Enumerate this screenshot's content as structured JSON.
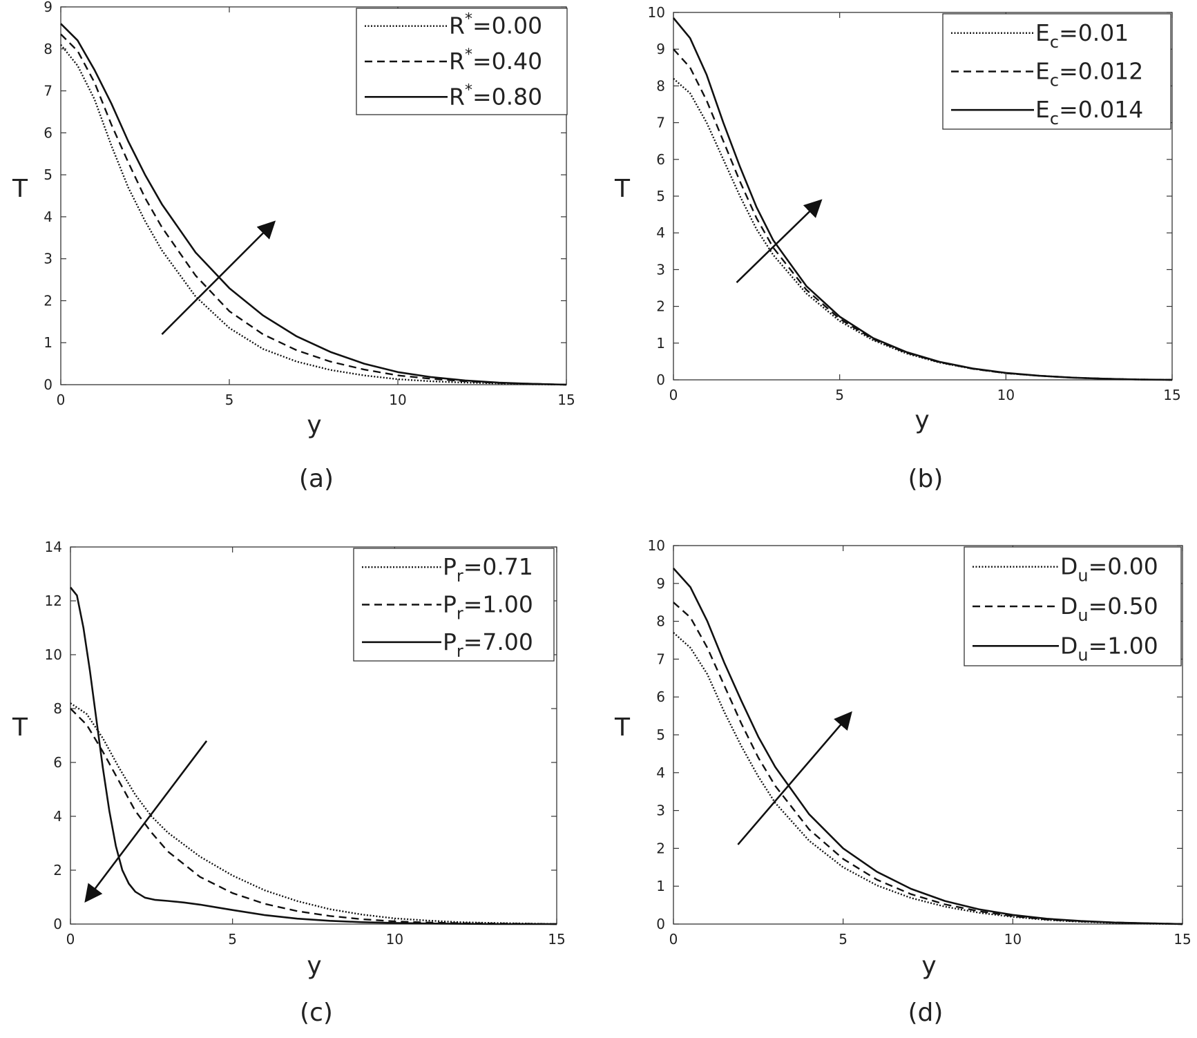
{
  "chart_data": [
    {
      "type": "line",
      "caption": "(a)",
      "xlabel": "y",
      "ylabel": "T",
      "xlim": [
        0,
        15
      ],
      "ylim": [
        0,
        9
      ],
      "xticks": [
        0,
        5,
        10,
        15
      ],
      "yticks": [
        0,
        1,
        2,
        3,
        4,
        5,
        6,
        7,
        8,
        9
      ],
      "legend": "top-right",
      "grid": false,
      "series": [
        {
          "name": "R*=0.00",
          "symbol": "R",
          "sup": "*",
          "sub": "",
          "value": "=0.00",
          "style": "dotted",
          "x": [
            0,
            0.5,
            1,
            1.5,
            2,
            2.5,
            3,
            4,
            5,
            6,
            7,
            8,
            9,
            10,
            11,
            12,
            13,
            14,
            15
          ],
          "y": [
            8.1,
            7.6,
            6.8,
            5.7,
            4.7,
            3.9,
            3.2,
            2.1,
            1.35,
            0.85,
            0.55,
            0.35,
            0.22,
            0.13,
            0.08,
            0.05,
            0.03,
            0.01,
            0
          ]
        },
        {
          "name": "R*=0.40",
          "symbol": "R",
          "sup": "*",
          "sub": "",
          "value": "=0.40",
          "style": "dashed",
          "x": [
            0,
            0.5,
            1,
            1.5,
            2,
            2.5,
            3,
            4,
            5,
            6,
            7,
            8,
            9,
            10,
            11,
            12,
            13,
            14,
            15
          ],
          "y": [
            8.35,
            7.95,
            7.2,
            6.2,
            5.3,
            4.45,
            3.75,
            2.6,
            1.75,
            1.2,
            0.82,
            0.55,
            0.36,
            0.22,
            0.14,
            0.08,
            0.04,
            0.02,
            0
          ]
        },
        {
          "name": "R*=0.80",
          "symbol": "R",
          "sup": "*",
          "sub": "",
          "value": "=0.80",
          "style": "solid",
          "x": [
            0,
            0.5,
            1,
            1.5,
            2,
            2.5,
            3,
            4,
            5,
            6,
            7,
            8,
            9,
            10,
            11,
            12,
            13,
            14,
            15
          ],
          "y": [
            8.6,
            8.2,
            7.5,
            6.7,
            5.8,
            5.0,
            4.3,
            3.15,
            2.3,
            1.65,
            1.15,
            0.78,
            0.5,
            0.3,
            0.18,
            0.1,
            0.05,
            0.02,
            0
          ]
        }
      ],
      "arrow": {
        "from": [
          3.0,
          1.2
        ],
        "to": [
          6.3,
          3.85
        ]
      }
    },
    {
      "type": "line",
      "caption": "(b)",
      "xlabel": "y",
      "ylabel": "T",
      "xlim": [
        0,
        15
      ],
      "ylim": [
        0,
        10
      ],
      "xticks": [
        0,
        5,
        10,
        15
      ],
      "yticks": [
        0,
        1,
        2,
        3,
        4,
        5,
        6,
        7,
        8,
        9,
        10
      ],
      "legend": "top-right",
      "grid": false,
      "series": [
        {
          "name": "Ec=0.01",
          "symbol": "E",
          "sup": "",
          "sub": "c",
          "value": "=0.01",
          "style": "dotted",
          "x": [
            0,
            0.5,
            1,
            1.5,
            2,
            2.5,
            3,
            4,
            5,
            6,
            7,
            8,
            9,
            10,
            11,
            12,
            13,
            14,
            15
          ],
          "y": [
            8.2,
            7.8,
            7.0,
            6.0,
            5.0,
            4.1,
            3.4,
            2.35,
            1.6,
            1.08,
            0.72,
            0.47,
            0.3,
            0.18,
            0.11,
            0.06,
            0.03,
            0.01,
            0
          ]
        },
        {
          "name": "Ec=0.012",
          "symbol": "E",
          "sup": "",
          "sub": "c",
          "value": "=0.012",
          "style": "dashed",
          "x": [
            0,
            0.5,
            1,
            1.5,
            2,
            2.5,
            3,
            4,
            5,
            6,
            7,
            8,
            9,
            10,
            11,
            12,
            13,
            14,
            15
          ],
          "y": [
            9.0,
            8.5,
            7.6,
            6.5,
            5.4,
            4.4,
            3.6,
            2.45,
            1.66,
            1.11,
            0.74,
            0.48,
            0.3,
            0.18,
            0.11,
            0.06,
            0.03,
            0.01,
            0
          ]
        },
        {
          "name": "Ec=0.014",
          "symbol": "E",
          "sup": "",
          "sub": "c",
          "value": "=0.014",
          "style": "solid",
          "x": [
            0,
            0.5,
            1,
            1.5,
            2,
            2.5,
            3,
            4,
            5,
            6,
            7,
            8,
            9,
            10,
            11,
            12,
            13,
            14,
            15
          ],
          "y": [
            9.85,
            9.3,
            8.3,
            7.0,
            5.8,
            4.7,
            3.8,
            2.55,
            1.72,
            1.14,
            0.76,
            0.49,
            0.31,
            0.19,
            0.11,
            0.06,
            0.03,
            0.01,
            0
          ]
        }
      ],
      "arrow": {
        "from": [
          1.9,
          2.65
        ],
        "to": [
          4.4,
          4.85
        ]
      }
    },
    {
      "type": "line",
      "caption": "(c)",
      "xlabel": "y",
      "ylabel": "T",
      "xlim": [
        0,
        15
      ],
      "ylim": [
        0,
        14
      ],
      "xticks": [
        0,
        5,
        10,
        15
      ],
      "yticks": [
        0,
        2,
        4,
        6,
        8,
        10,
        12,
        14
      ],
      "legend": "top-right",
      "grid": false,
      "series": [
        {
          "name": "Pr=0.71",
          "symbol": "P",
          "sup": "",
          "sub": "r",
          "value": "=0.71",
          "style": "dotted",
          "x": [
            0,
            0.5,
            1,
            1.5,
            2,
            2.5,
            3,
            4,
            5,
            6,
            7,
            8,
            9,
            10,
            11,
            12,
            13,
            14,
            15
          ],
          "y": [
            8.2,
            7.8,
            6.9,
            5.8,
            4.8,
            4.0,
            3.4,
            2.5,
            1.8,
            1.25,
            0.85,
            0.55,
            0.35,
            0.21,
            0.13,
            0.07,
            0.04,
            0.02,
            0
          ]
        },
        {
          "name": "Pr=1.00",
          "symbol": "P",
          "sup": "",
          "sub": "r",
          "value": "=1.00",
          "style": "dashed",
          "x": [
            0,
            0.5,
            1,
            1.5,
            2,
            2.5,
            3,
            4,
            5,
            6,
            7,
            8,
            9,
            10,
            11,
            12,
            13,
            14,
            15
          ],
          "y": [
            8.0,
            7.4,
            6.4,
            5.3,
            4.2,
            3.4,
            2.7,
            1.75,
            1.15,
            0.75,
            0.48,
            0.3,
            0.18,
            0.1,
            0.06,
            0.03,
            0.02,
            0.01,
            0
          ]
        },
        {
          "name": "Pr=7.00",
          "symbol": "P",
          "sup": "",
          "sub": "r",
          "value": "=7.00",
          "style": "solid",
          "x": [
            0,
            0.2,
            0.4,
            0.6,
            0.8,
            1.0,
            1.2,
            1.4,
            1.6,
            1.8,
            2.0,
            2.3,
            2.6,
            3.0,
            3.5,
            4.0,
            4.5,
            5,
            6,
            7,
            8,
            9,
            10,
            11,
            12,
            13,
            14,
            15
          ],
          "y": [
            12.5,
            12.2,
            11.0,
            9.4,
            7.6,
            5.8,
            4.2,
            2.9,
            2.0,
            1.5,
            1.2,
            0.98,
            0.9,
            0.86,
            0.8,
            0.72,
            0.62,
            0.52,
            0.33,
            0.2,
            0.12,
            0.07,
            0.04,
            0.02,
            0.01,
            0.0,
            0.0,
            0
          ]
        }
      ],
      "arrow": {
        "from": [
          4.2,
          6.8
        ],
        "to": [
          0.5,
          0.9
        ]
      }
    },
    {
      "type": "line",
      "caption": "(d)",
      "xlabel": "y",
      "ylabel": "T",
      "xlim": [
        0,
        15
      ],
      "ylim": [
        0,
        10
      ],
      "xticks": [
        0,
        5,
        10,
        15
      ],
      "yticks": [
        0,
        1,
        2,
        3,
        4,
        5,
        6,
        7,
        8,
        9,
        10
      ],
      "legend": "top-right",
      "grid": false,
      "series": [
        {
          "name": "Du=0.00",
          "symbol": "D",
          "sup": "",
          "sub": "u",
          "value": "=0.00",
          "style": "dotted",
          "x": [
            0,
            0.5,
            1,
            1.5,
            2,
            2.5,
            3,
            4,
            5,
            6,
            7,
            8,
            9,
            10,
            11,
            12,
            13,
            14,
            15
          ],
          "y": [
            7.7,
            7.3,
            6.6,
            5.6,
            4.7,
            3.9,
            3.2,
            2.2,
            1.5,
            1.02,
            0.69,
            0.46,
            0.3,
            0.19,
            0.11,
            0.06,
            0.03,
            0.01,
            0
          ]
        },
        {
          "name": "Du=0.50",
          "symbol": "D",
          "sup": "",
          "sub": "u",
          "value": "=0.50",
          "style": "dashed",
          "x": [
            0,
            0.5,
            1,
            1.5,
            2,
            2.5,
            3,
            4,
            5,
            6,
            7,
            8,
            9,
            10,
            11,
            12,
            13,
            14,
            15
          ],
          "y": [
            8.5,
            8.1,
            7.3,
            6.3,
            5.3,
            4.4,
            3.65,
            2.5,
            1.72,
            1.17,
            0.79,
            0.52,
            0.34,
            0.21,
            0.12,
            0.07,
            0.04,
            0.02,
            0
          ]
        },
        {
          "name": "Du=1.00",
          "symbol": "D",
          "sup": "",
          "sub": "u",
          "value": "=1.00",
          "style": "solid",
          "x": [
            0,
            0.5,
            1,
            1.5,
            2,
            2.5,
            3,
            4,
            5,
            6,
            7,
            8,
            9,
            10,
            11,
            12,
            13,
            14,
            15
          ],
          "y": [
            9.4,
            8.9,
            8.0,
            6.9,
            5.9,
            4.95,
            4.15,
            2.9,
            2.0,
            1.38,
            0.93,
            0.61,
            0.39,
            0.24,
            0.14,
            0.08,
            0.04,
            0.02,
            0
          ]
        }
      ],
      "arrow": {
        "from": [
          1.9,
          2.1
        ],
        "to": [
          5.2,
          5.55
        ]
      }
    }
  ]
}
